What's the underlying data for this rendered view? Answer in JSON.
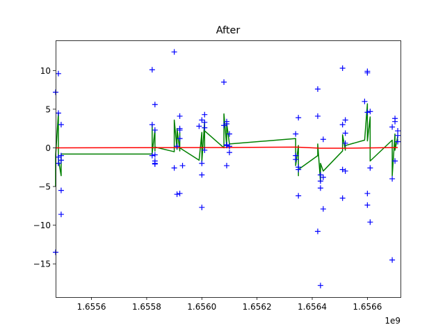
{
  "chart_data": {
    "type": "scatter",
    "title": "After",
    "xlabel": "",
    "ylabel": "",
    "x_offset_label": "1e9",
    "xlim": [
      1.65547,
      1.65672
    ],
    "ylim": [
      -19.3,
      13.9
    ],
    "x_ticks": [
      1.6556,
      1.6558,
      1.656,
      1.6562,
      1.6564,
      1.6566
    ],
    "x_tick_labels": [
      "1.6556",
      "1.6558",
      "1.6560",
      "1.6562",
      "1.6564",
      "1.6566"
    ],
    "y_ticks": [
      -15,
      -10,
      -5,
      0,
      5,
      10
    ],
    "y_tick_labels": [
      "−15",
      "−10",
      "−5",
      "0",
      "5",
      "10"
    ],
    "grid": false,
    "legend": null,
    "colors": {
      "points": "#0000ff",
      "smooth": "#008000",
      "trend": "#ff0000",
      "axes": "#000000"
    },
    "series": [
      {
        "kind": "scatter",
        "marker": "+",
        "color": "#0000ff",
        "points": [
          [
            1.65547,
            -13.5
          ],
          [
            1.65547,
            7.2
          ],
          [
            1.65548,
            4.5
          ],
          [
            1.65548,
            9.6
          ],
          [
            1.65548,
            -1.2
          ],
          [
            1.65548,
            -2.0
          ],
          [
            1.65549,
            -5.5
          ],
          [
            1.65549,
            -8.6
          ],
          [
            1.65549,
            3.0
          ],
          [
            1.65549,
            -1.0
          ],
          [
            1.65549,
            -1.6
          ],
          [
            1.65582,
            10.1
          ],
          [
            1.65582,
            3.0
          ],
          [
            1.65583,
            2.3
          ],
          [
            1.65582,
            -1.0
          ],
          [
            1.65583,
            -2.0
          ],
          [
            1.65583,
            5.6
          ],
          [
            1.65583,
            -1.7
          ],
          [
            1.65583,
            -2.1
          ],
          [
            1.65583,
            -0.9
          ],
          [
            1.6559,
            12.4
          ],
          [
            1.6559,
            -2.6
          ],
          [
            1.65591,
            0.2
          ],
          [
            1.65591,
            -6.0
          ],
          [
            1.65592,
            4.1
          ],
          [
            1.65592,
            2.5
          ],
          [
            1.65592,
            -5.9
          ],
          [
            1.65592,
            1.2
          ],
          [
            1.65593,
            -2.3
          ],
          [
            1.65592,
            2.3
          ],
          [
            1.65599,
            2.8
          ],
          [
            1.656,
            3.6
          ],
          [
            1.656,
            -7.7
          ],
          [
            1.656,
            -3.5
          ],
          [
            1.656,
            -2.0
          ],
          [
            1.65601,
            4.3
          ],
          [
            1.65601,
            -0.3
          ],
          [
            1.65601,
            3.3
          ],
          [
            1.65601,
            2.6
          ],
          [
            1.65608,
            8.5
          ],
          [
            1.65608,
            2.9
          ],
          [
            1.65609,
            3.4
          ],
          [
            1.65609,
            0.3
          ],
          [
            1.65609,
            -2.3
          ],
          [
            1.65609,
            3.1
          ],
          [
            1.65609,
            0.4
          ],
          [
            1.6561,
            -0.6
          ],
          [
            1.6561,
            1.8
          ],
          [
            1.6561,
            0.2
          ],
          [
            1.65634,
            -1.0
          ],
          [
            1.65634,
            -1.5
          ],
          [
            1.65634,
            1.8
          ],
          [
            1.65635,
            -2.5
          ],
          [
            1.65635,
            -2.8
          ],
          [
            1.65635,
            -6.2
          ],
          [
            1.65635,
            3.9
          ],
          [
            1.65642,
            -10.8
          ],
          [
            1.65642,
            7.6
          ],
          [
            1.65642,
            4.1
          ],
          [
            1.65643,
            -17.8
          ],
          [
            1.65643,
            -3.5
          ],
          [
            1.65643,
            -4.3
          ],
          [
            1.65643,
            -5.2
          ],
          [
            1.65644,
            -7.9
          ],
          [
            1.65644,
            -3.8
          ],
          [
            1.65644,
            1.1
          ],
          [
            1.65651,
            10.3
          ],
          [
            1.65651,
            3.0
          ],
          [
            1.65651,
            -2.8
          ],
          [
            1.65651,
            -6.5
          ],
          [
            1.65652,
            3.6
          ],
          [
            1.65652,
            1.9
          ],
          [
            1.65652,
            -3.0
          ],
          [
            1.65652,
            0.6
          ],
          [
            1.65659,
            6.0
          ],
          [
            1.6566,
            9.7
          ],
          [
            1.6566,
            9.9
          ],
          [
            1.6566,
            -5.9
          ],
          [
            1.6566,
            -7.4
          ],
          [
            1.6566,
            4.6
          ],
          [
            1.65661,
            -9.6
          ],
          [
            1.65661,
            -2.6
          ],
          [
            1.65661,
            4.7
          ],
          [
            1.65669,
            2.7
          ],
          [
            1.65669,
            -14.5
          ],
          [
            1.65669,
            -4.0
          ],
          [
            1.6567,
            3.8
          ],
          [
            1.6567,
            -1.7
          ],
          [
            1.6567,
            3.4
          ],
          [
            1.65671,
            1.6
          ],
          [
            1.65671,
            2.2
          ],
          [
            1.65671,
            0.8
          ]
        ]
      },
      {
        "kind": "line",
        "color": "#008000",
        "points": [
          [
            1.65547,
            -5.0
          ],
          [
            1.65547,
            -1.0
          ],
          [
            1.65548,
            4.5
          ],
          [
            1.65548,
            -1.5
          ],
          [
            1.65549,
            -3.6
          ],
          [
            1.65549,
            -0.8
          ],
          [
            1.65582,
            -0.8
          ],
          [
            1.65582,
            3.0
          ],
          [
            1.65582,
            -0.7
          ],
          [
            1.65583,
            2.3
          ],
          [
            1.65583,
            -0.4
          ],
          [
            1.65583,
            0.1
          ],
          [
            1.6559,
            -0.5
          ],
          [
            1.6559,
            3.6
          ],
          [
            1.65591,
            -0.2
          ],
          [
            1.65591,
            2.5
          ],
          [
            1.65592,
            -0.4
          ],
          [
            1.65592,
            2.0
          ],
          [
            1.65592,
            0.0
          ],
          [
            1.65599,
            -1.6
          ],
          [
            1.656,
            2.0
          ],
          [
            1.656,
            -1.8
          ],
          [
            1.65601,
            3.4
          ],
          [
            1.65601,
            -0.2
          ],
          [
            1.65601,
            2.2
          ],
          [
            1.65608,
            0.0
          ],
          [
            1.65608,
            4.4
          ],
          [
            1.65609,
            0.2
          ],
          [
            1.65609,
            3.2
          ],
          [
            1.6561,
            0.5
          ],
          [
            1.65634,
            1.2
          ],
          [
            1.65634,
            -2.3
          ],
          [
            1.65635,
            0.3
          ],
          [
            1.65635,
            -3.6
          ],
          [
            1.65635,
            -2.8
          ],
          [
            1.65642,
            -1.0
          ],
          [
            1.65642,
            0.5
          ],
          [
            1.65643,
            -4.4
          ],
          [
            1.65643,
            -2.0
          ],
          [
            1.65644,
            -3.0
          ],
          [
            1.65651,
            -0.4
          ],
          [
            1.65651,
            1.7
          ],
          [
            1.65652,
            -0.3
          ],
          [
            1.65652,
            0.3
          ],
          [
            1.65659,
            1.0
          ],
          [
            1.6566,
            5.7
          ],
          [
            1.6566,
            0.9
          ],
          [
            1.65661,
            4.0
          ],
          [
            1.65661,
            -1.7
          ],
          [
            1.65669,
            1.0
          ],
          [
            1.65669,
            -3.6
          ],
          [
            1.6567,
            1.8
          ],
          [
            1.6567,
            -0.3
          ],
          [
            1.65671,
            1.5
          ]
        ]
      },
      {
        "kind": "line",
        "color": "#ff0000",
        "points": [
          [
            1.65547,
            0.0
          ],
          [
            1.65609,
            0.05
          ],
          [
            1.65634,
            0.1
          ],
          [
            1.65643,
            -0.05
          ],
          [
            1.65652,
            -0.05
          ],
          [
            1.65671,
            0.05
          ]
        ]
      }
    ]
  }
}
